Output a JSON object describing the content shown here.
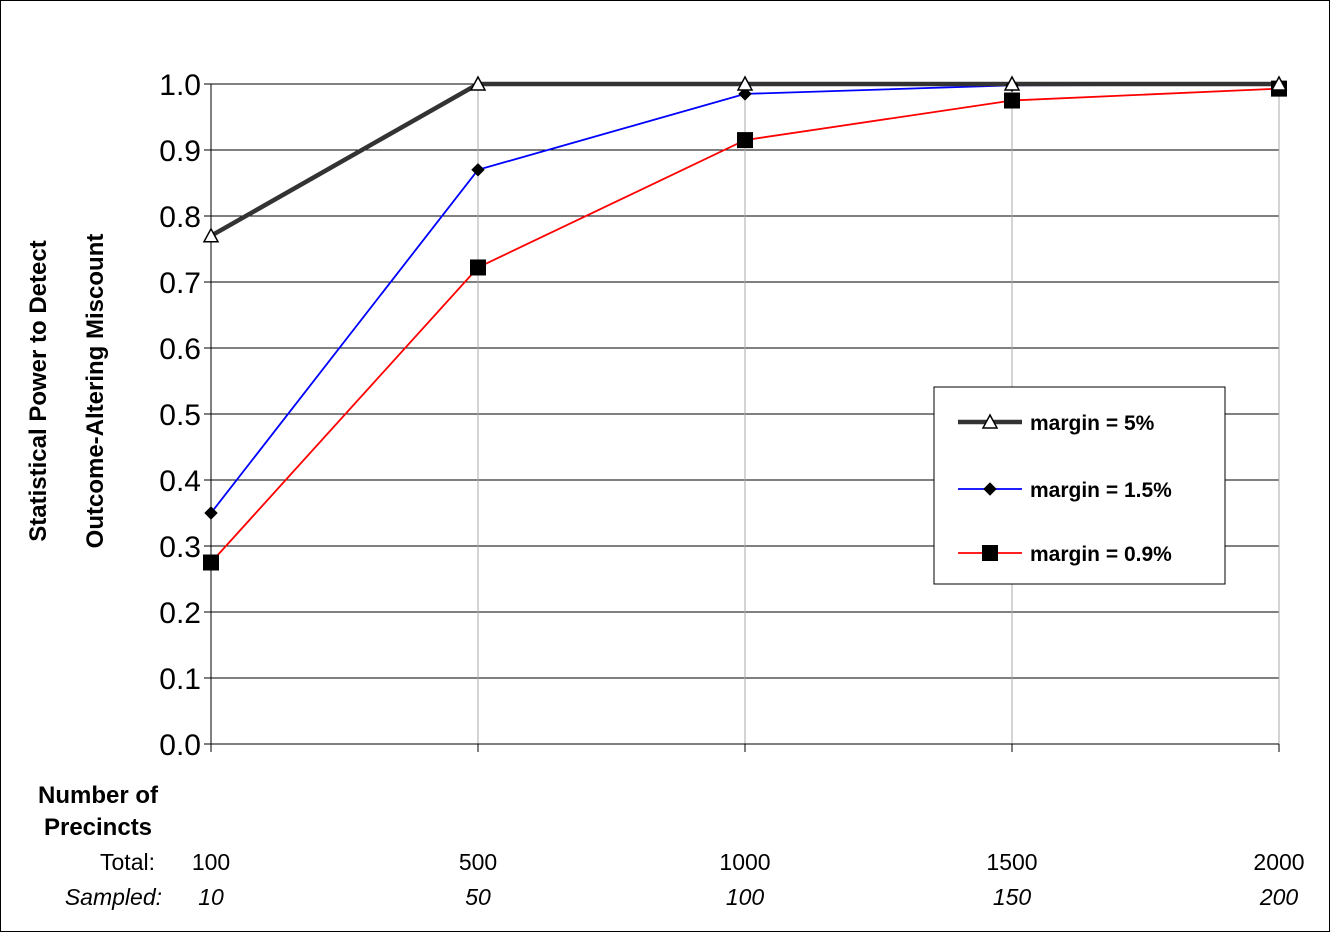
{
  "chart_data": {
    "type": "line",
    "ylabel_line1": "Statistical Power to Detect",
    "ylabel_line2": "Outcome-Altering Miscount",
    "ylim": [
      0,
      1
    ],
    "yticks": [
      "0.0",
      "0.1",
      "0.2",
      "0.3",
      "0.4",
      "0.5",
      "0.6",
      "0.7",
      "0.8",
      "0.9",
      "1.0"
    ],
    "x_title_line1": "Number of",
    "x_title_line2": "Precincts",
    "x_row1_label": "Total:",
    "x_row2_label": "Sampled:",
    "x_total": [
      "100",
      "500",
      "1000",
      "1500",
      "2000"
    ],
    "x_sampled": [
      "10",
      "50",
      "100",
      "150",
      "200"
    ],
    "grid": true,
    "legend_position": "right",
    "series": [
      {
        "name": "margin = 5%",
        "color": "#333333",
        "marker": "triangle",
        "values": [
          0.77,
          1.0,
          1.0,
          1.0,
          1.0
        ]
      },
      {
        "name": "margin = 1.5%",
        "color": "#0000ff",
        "marker": "diamond",
        "values": [
          0.35,
          0.87,
          0.985,
          0.998,
          0.999
        ]
      },
      {
        "name": "margin = 0.9%",
        "color": "#ff0000",
        "marker": "square",
        "values": [
          0.275,
          0.722,
          0.915,
          0.975,
          0.993
        ]
      }
    ]
  }
}
